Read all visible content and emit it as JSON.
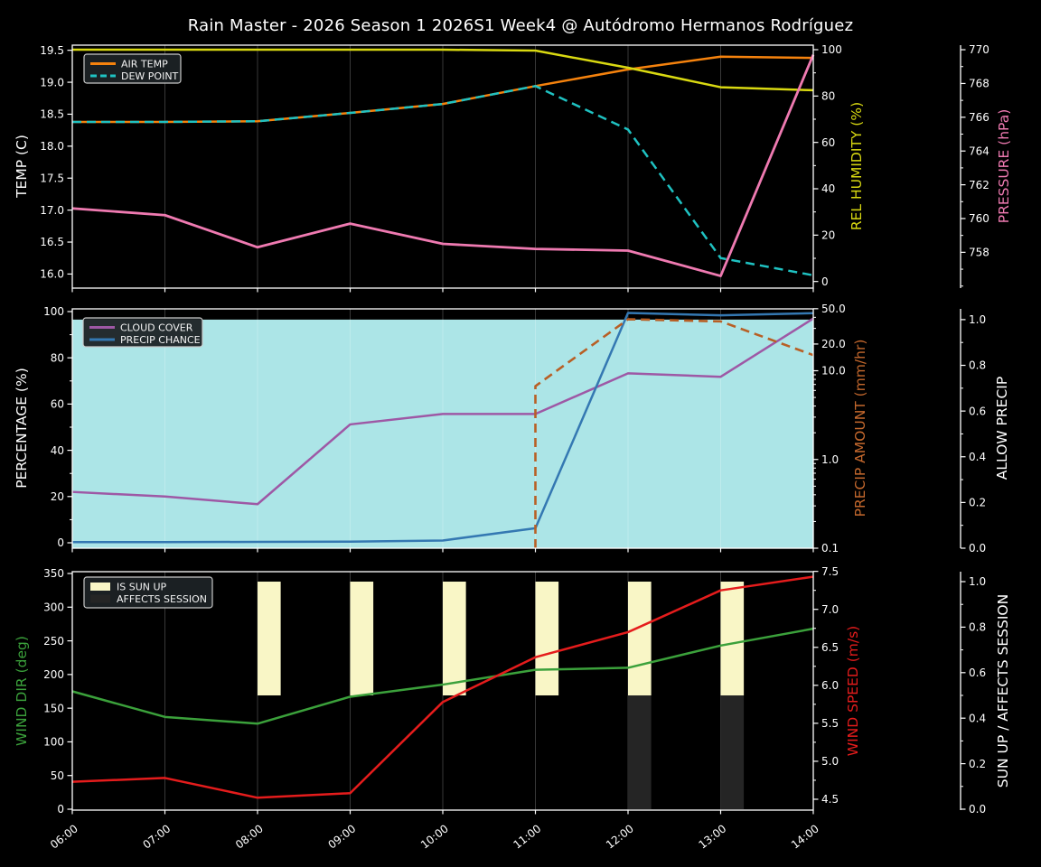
{
  "title": "Rain Master - 2026 Season 1 2026S1 Week4 @ Autódromo Hermanos Rodríguez",
  "colors": {
    "background": "#000000",
    "frame": "#ffffff",
    "tick_label": "#ffffff",
    "grid": "rgba(255,255,255,0.25)",
    "legend_bg": "#1c2225",
    "legend_border": "#c9c9c9",
    "air_temp": "#f5820d",
    "dew_point": "#1fc2c2",
    "humidity": "#d9d911",
    "pressure": "#ef7ab1",
    "cloud_cover": "#9e58a5",
    "precip_chance": "#3478b2",
    "precip_amount": "#b85f25",
    "allow_precip_fill": "#ace5e7",
    "wind_dir": "#3ba13b",
    "wind_speed": "#e51c1c",
    "sun_up_bar": "#f9f6c6",
    "affects_session_bar": "#252525"
  },
  "chart_data": {
    "x_categories": [
      "06:00",
      "07:00",
      "08:00",
      "09:00",
      "10:00",
      "11:00",
      "12:00",
      "13:00",
      "14:00"
    ],
    "x_hours": [
      6,
      7,
      8,
      9,
      10,
      11,
      12,
      13,
      14
    ],
    "grid": "vertical-only",
    "charts": [
      {
        "type": "line",
        "legend_position": "upper left",
        "axes": {
          "left": {
            "title": "TEMP (C)",
            "title_color": "#ffffff",
            "ticks": [
              16.0,
              16.5,
              17.0,
              17.5,
              18.0,
              18.5,
              19.0,
              19.5
            ],
            "decimals": 1,
            "range": [
              15.78,
              19.58
            ]
          },
          "right0": {
            "title": "REL HUMIDITY (%)",
            "title_color": "#d9d911",
            "ticks": [
              0,
              20,
              40,
              60,
              80,
              100
            ],
            "decimals": 0,
            "range": [
              -2.85,
              101.95
            ],
            "minor_step": 10
          },
          "right1": {
            "title": "PRESSURE (hPa)",
            "title_color": "#ef7ab1",
            "ticks": [
              758,
              760,
              762,
              764,
              766,
              768,
              770
            ],
            "decimals": 0,
            "range": [
              755.88,
              770.27
            ],
            "minor_step": 1
          }
        },
        "legend": [
          {
            "label": "AIR TEMP",
            "color": "#f5820d",
            "dash": false,
            "patch": false
          },
          {
            "label": "DEW POINT",
            "color": "#1fc2c2",
            "dash": true,
            "patch": false
          }
        ],
        "series": [
          {
            "name": "AIR TEMP",
            "axis": "left",
            "color": "#f5820d",
            "dash": false,
            "width": 2.5,
            "values": [
              18.38,
              18.38,
              18.39,
              18.52,
              18.66,
              18.94,
              19.2,
              19.4,
              19.38
            ]
          },
          {
            "name": "DEW POINT",
            "axis": "left",
            "color": "#1fc2c2",
            "dash": true,
            "width": 2.5,
            "values": [
              18.38,
              18.38,
              18.39,
              18.52,
              18.66,
              18.94,
              18.26,
              16.25,
              15.98
            ]
          },
          {
            "name": "REL HUMIDITY",
            "axis": "right0",
            "color": "#d9d911",
            "dash": false,
            "width": 2.5,
            "values": [
              100,
              100,
              100,
              100,
              100,
              99.6,
              92.2,
              83.8,
              82.5
            ]
          },
          {
            "name": "PRESSURE",
            "axis": "right1",
            "color": "#ef7ab1",
            "dash": false,
            "width": 2.8,
            "values": [
              760.6,
              760.2,
              758.3,
              759.7,
              758.5,
              758.2,
              758.1,
              756.6,
              769.7
            ]
          }
        ]
      },
      {
        "type": "line",
        "legend_position": "upper left",
        "axes": {
          "left": {
            "title": "PERCENTAGE (%)",
            "title_color": "#ffffff",
            "ticks": [
              0,
              20,
              40,
              60,
              80,
              100
            ],
            "decimals": 0,
            "range": [
              -2.34,
              101.17
            ],
            "minor_step": 10
          },
          "right0": {
            "title": "PRECIP AMOUNT (mm/hr)",
            "title_color": "#c4682d",
            "scale": "log",
            "ticks": [
              0.1,
              1,
              10,
              20,
              50
            ],
            "decimals": 1,
            "range": [
              0.1,
              49.8
            ],
            "minor_vals": [
              0.2,
              0.3,
              0.4,
              0.5,
              0.6,
              0.7,
              0.8,
              0.9,
              2,
              3,
              4,
              5,
              6,
              7,
              8,
              9,
              30,
              40
            ]
          },
          "right1": {
            "title": "ALLOW PRECIP",
            "title_color": "#ffffff",
            "ticks": [
              0.0,
              0.2,
              0.4,
              0.6,
              0.8,
              1.0
            ],
            "decimals": 1,
            "range": [
              0,
              1.047
            ],
            "minor_step": 0.1
          }
        },
        "fill": {
          "name": "allow-precip-region",
          "axis": "right1",
          "from": 0,
          "to": 1,
          "color": "#ace5e7"
        },
        "legend": [
          {
            "label": "CLOUD COVER",
            "color": "#9e58a5",
            "dash": false,
            "patch": false
          },
          {
            "label": "PRECIP CHANCE",
            "color": "#3478b2",
            "dash": false,
            "patch": false
          }
        ],
        "series": [
          {
            "name": "CLOUD COVER",
            "axis": "left",
            "color": "#9e58a5",
            "dash": false,
            "width": 2.5,
            "values": [
              22,
              20,
              16.7,
              51.2,
              55.7,
              55.7,
              73.3,
              71.8,
              97
            ]
          },
          {
            "name": "PRECIP CHANCE",
            "axis": "left",
            "color": "#3478b2",
            "dash": false,
            "width": 2.5,
            "values": [
              0.3,
              0.3,
              0.4,
              0.5,
              1.0,
              6.3,
              99.4,
              98.4,
              99.3
            ]
          },
          {
            "name": "PRECIP AMOUNT",
            "axis": "right0",
            "color": "#b85f25",
            "dash": true,
            "width": 2.6,
            "rise_from_min": true,
            "values": [
              null,
              null,
              null,
              null,
              null,
              6.7,
              38,
              36,
              15
            ]
          }
        ]
      },
      {
        "type": "line+bar",
        "legend_position": "upper left",
        "axes": {
          "left": {
            "title": "WIND DIR (deg)",
            "title_color": "#3ba13b",
            "ticks": [
              0,
              50,
              100,
              150,
              200,
              250,
              300,
              350
            ],
            "decimals": 0,
            "range": [
              -1.34,
              352.7
            ]
          },
          "right0": {
            "title": "WIND SPEED (m/s)",
            "title_color": "#e51c1c",
            "ticks": [
              4.5,
              5.0,
              5.5,
              6.0,
              6.5,
              7.0,
              7.5
            ],
            "decimals": 1,
            "range": [
              4.357,
              7.496
            ],
            "minor_step": 0.25
          },
          "right1": {
            "title": "SUN UP / AFFECTS SESSION",
            "title_color": "#ffffff",
            "ticks": [
              0.0,
              0.2,
              0.4,
              0.6,
              0.8,
              1.0
            ],
            "decimals": 1,
            "range": [
              -0.004,
              1.0437
            ],
            "minor_step": 0.1
          }
        },
        "legend": [
          {
            "label": "IS SUN UP",
            "color": "#f9f6c6",
            "dash": false,
            "patch": true
          },
          {
            "label": "AFFECTS SESSION",
            "color": "#252525",
            "dash": false,
            "patch": true
          }
        ],
        "bars": [
          {
            "name": "IS SUN UP",
            "axis": "right1",
            "color": "#f9f6c6",
            "hours": [
              8,
              9,
              10,
              11,
              12,
              13
            ],
            "from": 0.5,
            "to": 1.0,
            "width_hours": 0.25
          },
          {
            "name": "AFFECTS SESSION",
            "axis": "right1",
            "color": "#252525",
            "hours": [
              12,
              13
            ],
            "from": 0.0,
            "to": 0.5,
            "width_hours": 0.25
          }
        ],
        "series": [
          {
            "name": "WIND DIR",
            "axis": "left",
            "color": "#3ba13b",
            "dash": false,
            "width": 2.5,
            "values": [
              175,
              137,
              127,
              167,
              185,
              207,
              210,
              243,
              268
            ]
          },
          {
            "name": "WIND SPEED",
            "axis": "right0",
            "color": "#e51c1c",
            "dash": false,
            "width": 2.5,
            "values": [
              4.73,
              4.78,
              4.52,
              4.58,
              5.78,
              6.37,
              6.7,
              7.25,
              7.43
            ]
          }
        ]
      }
    ]
  }
}
